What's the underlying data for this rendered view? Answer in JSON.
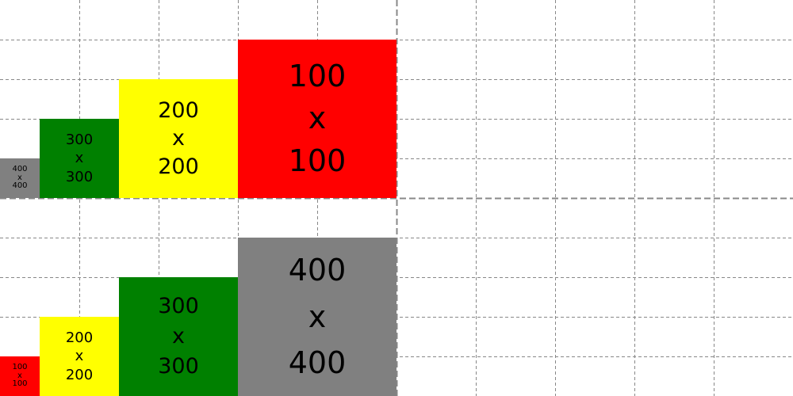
{
  "colors": {
    "red": "#ff0000",
    "yellow": "#ffff00",
    "green": "#008000",
    "gray": "#808080",
    "grid_line": "#888888",
    "divider_line": "#888888"
  },
  "top_row": [
    {
      "w": "400",
      "x": "x",
      "h": "400",
      "color": "#808080"
    },
    {
      "w": "300",
      "x": "x",
      "h": "300",
      "color": "#008000"
    },
    {
      "w": "200",
      "x": "x",
      "h": "200",
      "color": "#ffff00"
    },
    {
      "w": "100",
      "x": "x",
      "h": "100",
      "color": "#ff0000"
    }
  ],
  "bottom_row": [
    {
      "w": "100",
      "x": "x",
      "h": "100",
      "color": "#ff0000"
    },
    {
      "w": "200",
      "x": "x",
      "h": "200",
      "color": "#ffff00"
    },
    {
      "w": "300",
      "x": "x",
      "h": "300",
      "color": "#008000"
    },
    {
      "w": "400",
      "x": "x",
      "h": "400",
      "color": "#808080"
    }
  ]
}
